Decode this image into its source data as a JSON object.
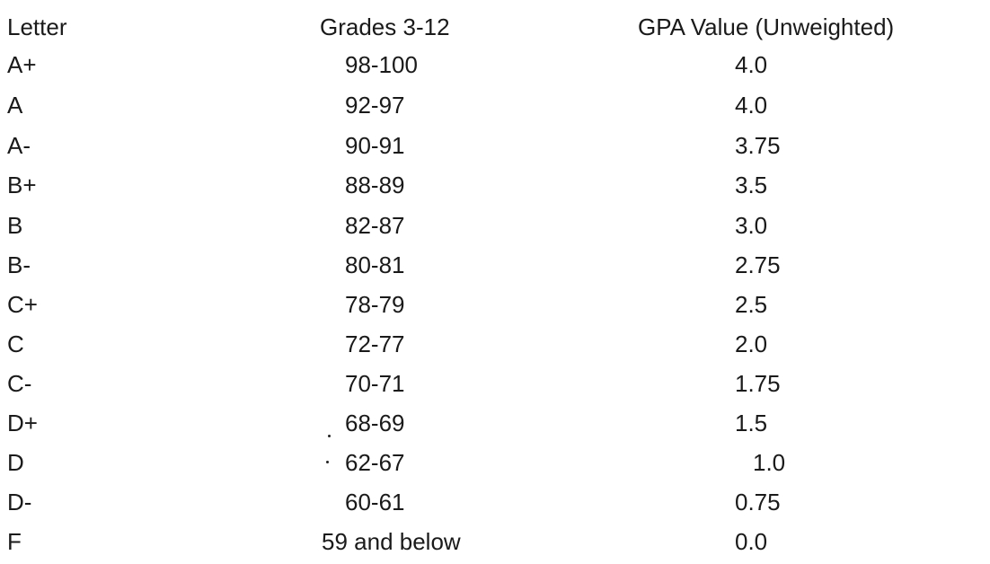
{
  "headers": {
    "letter": "Letter",
    "grades": "Grades 3-12",
    "gpa": "GPA Value (Unweighted)"
  },
  "rows": [
    {
      "letter": "A+",
      "range": "98-100",
      "gpa": "4.0"
    },
    {
      "letter": "A",
      "range": "92-97",
      "gpa": "4.0"
    },
    {
      "letter": "A-",
      "range": "90-91",
      "gpa": "3.75"
    },
    {
      "letter": "B+",
      "range": "88-89",
      "gpa": "3.5"
    },
    {
      "letter": "B",
      "range": "82-87",
      "gpa": "3.0"
    },
    {
      "letter": "B-",
      "range": "80-81",
      "gpa": "2.75"
    },
    {
      "letter": "C+",
      "range": "78-79",
      "gpa": "2.5"
    },
    {
      "letter": "C",
      "range": "72-77",
      "gpa": "2.0"
    },
    {
      "letter": "C-",
      "range": "70-71",
      "gpa": "1.75"
    },
    {
      "letter": "D+",
      "range": "68-69",
      "gpa": "1.5"
    },
    {
      "letter": "D",
      "range": "62-67",
      "gpa": "1.0"
    },
    {
      "letter": "D-",
      "range": "60-61",
      "gpa": "0.75"
    },
    {
      "letter": "F",
      "range": "59 and below",
      "gpa": "0.0"
    }
  ]
}
